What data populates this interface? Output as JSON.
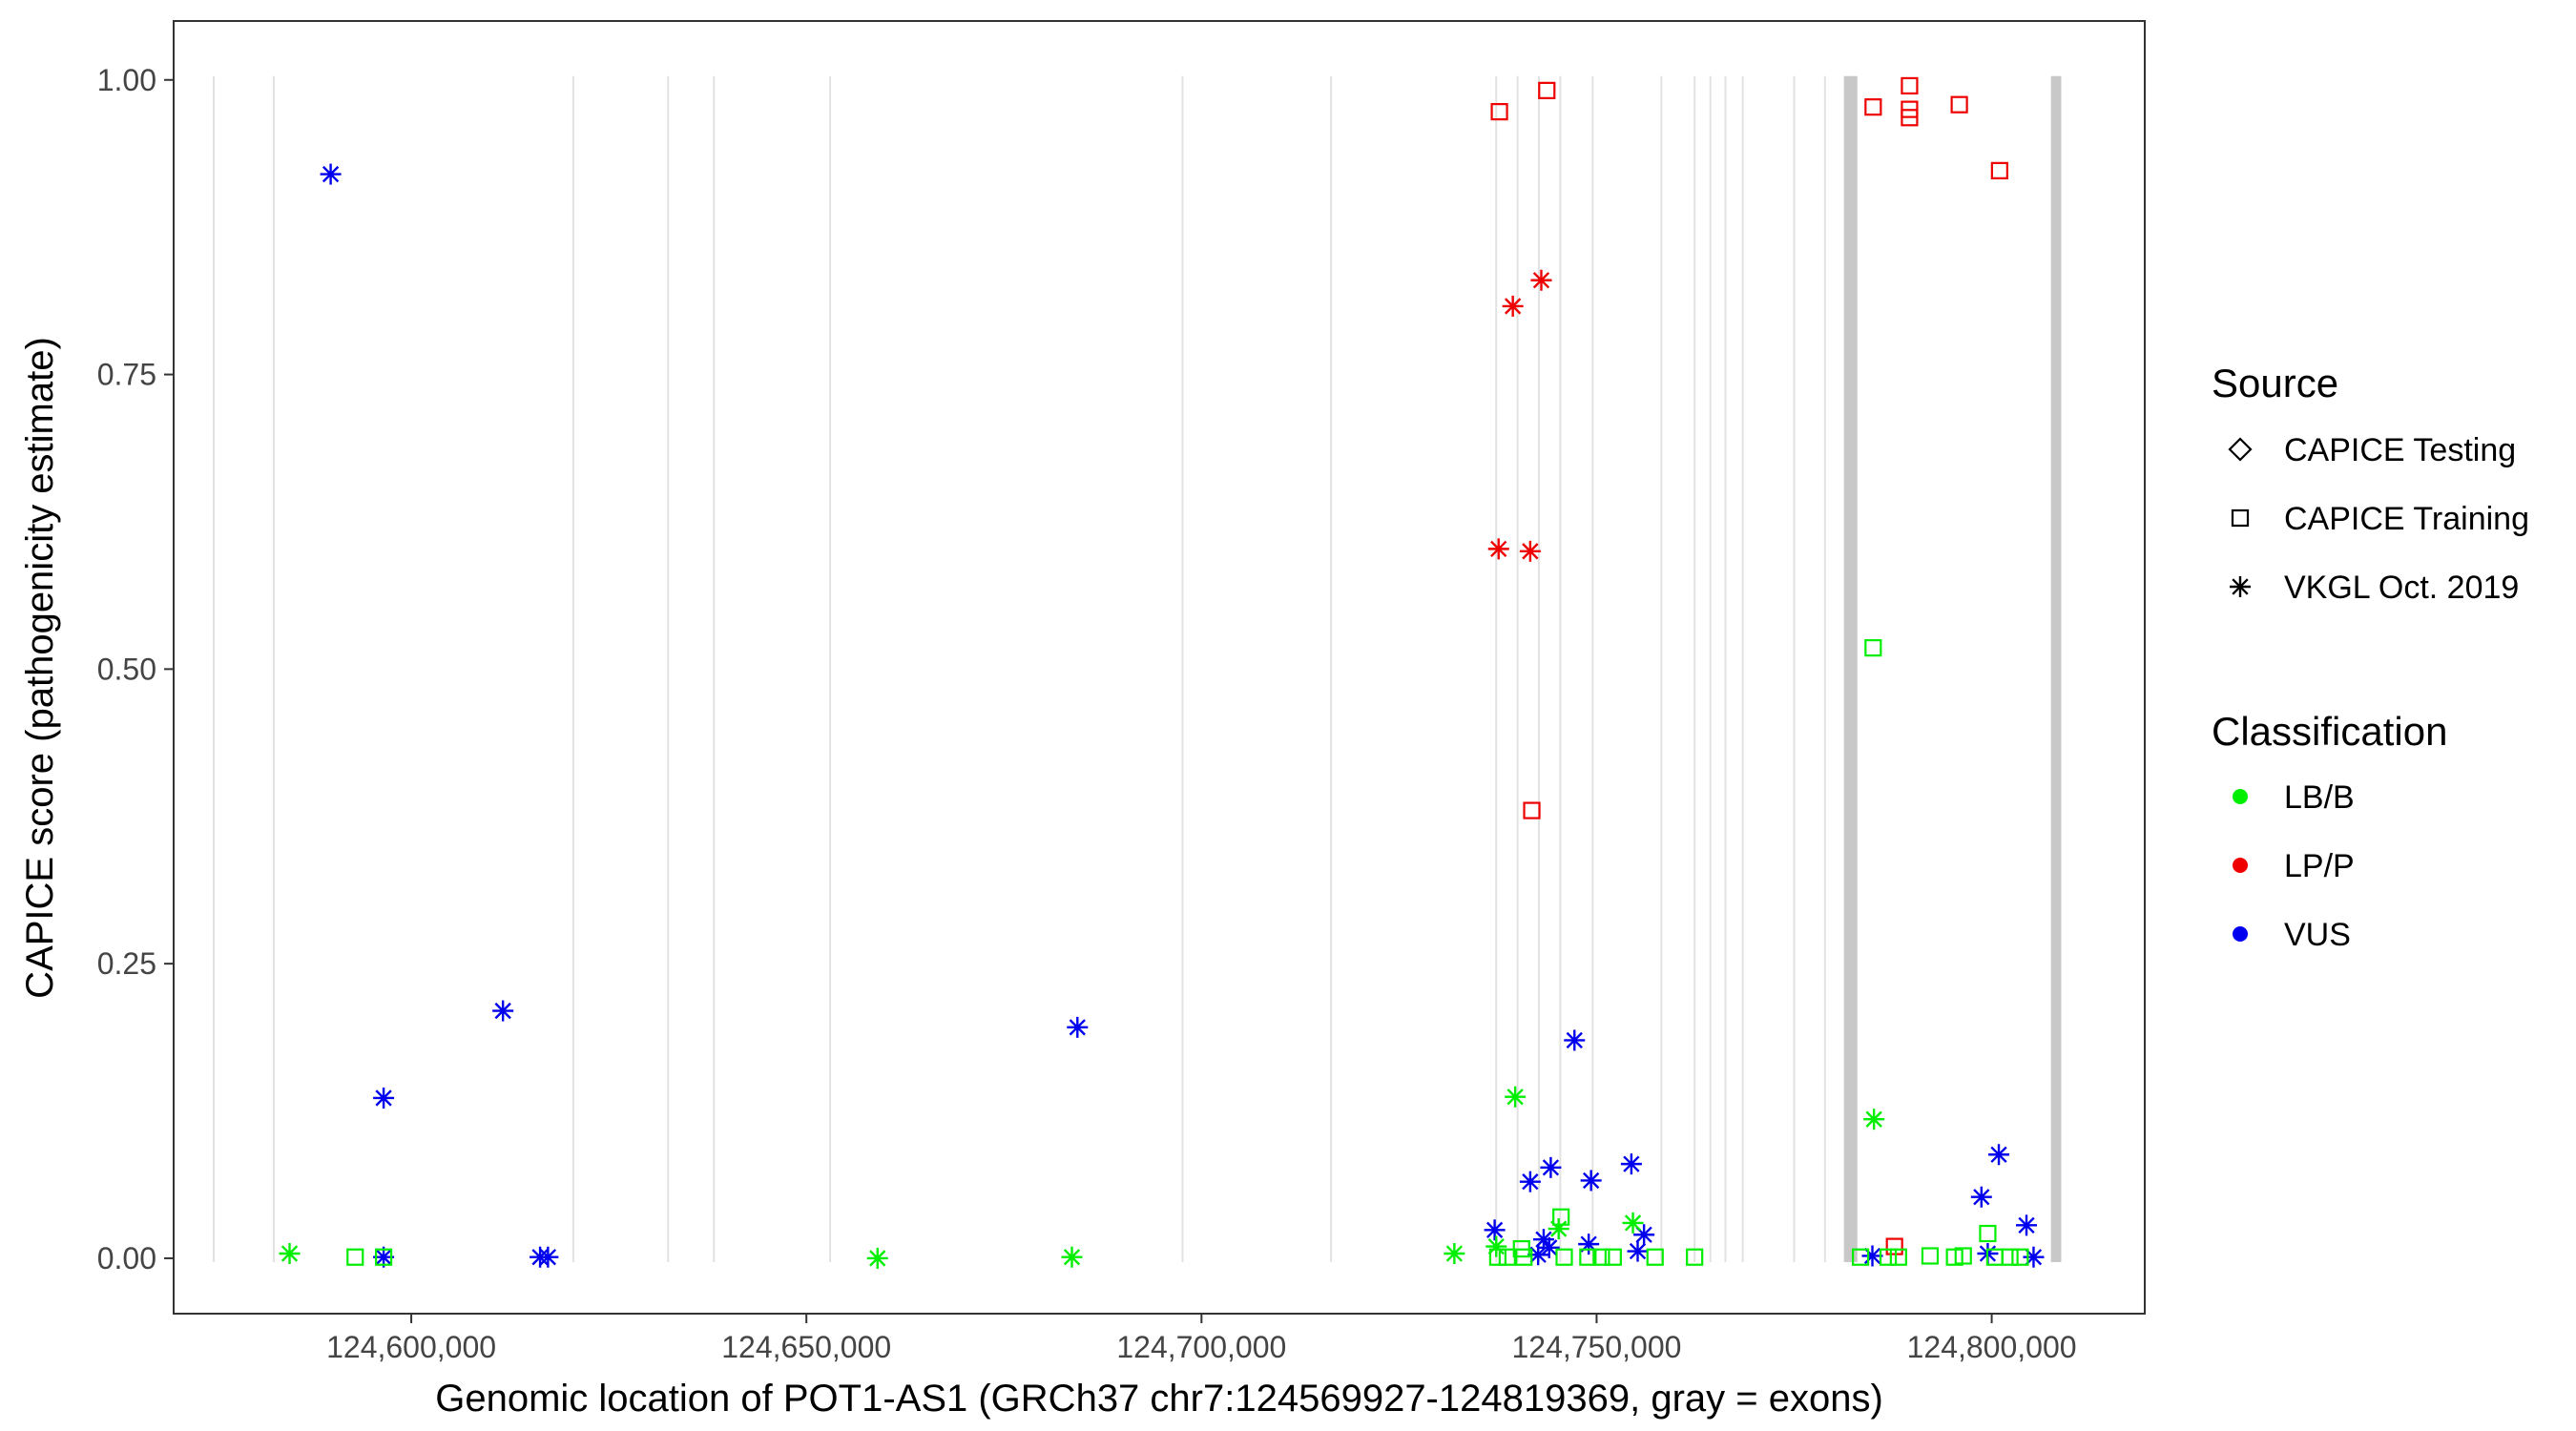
{
  "chart_data": {
    "type": "scatter",
    "title": "",
    "xlabel": "Genomic location of POT1-AS1 (GRCh37 chr7:124569927-124819369, gray = exons)",
    "ylabel": "CAPICE score (pathogenicity estimate)",
    "xlim": [
      124569927,
      124819369
    ],
    "ylim": [
      -0.047,
      1.05
    ],
    "x_ticks": [
      124600000,
      124650000,
      124700000,
      124750000,
      124800000
    ],
    "x_tick_labels": [
      "124,600,000",
      "124,650,000",
      "124,700,000",
      "124,750,000",
      "124,800,000"
    ],
    "y_ticks": [
      0,
      0.25,
      0.5,
      0.75,
      1
    ],
    "y_tick_labels": [
      "0.00",
      "0.25",
      "0.50",
      "0.75",
      "1.00"
    ],
    "grid": "vertical lines at exon boundaries",
    "legend_position": "right",
    "colors": {
      "LB/B": "#00ee00",
      "LP/P": "#ee0000",
      "VUS": "#0000ee",
      "exon": "#c8c8c8",
      "grid": "#e2e2e2"
    },
    "legend": {
      "source_title": "Source",
      "source_items": [
        {
          "label": "CAPICE Testing",
          "shape": "diamond"
        },
        {
          "label": "CAPICE Training",
          "shape": "square"
        },
        {
          "label": "VKGL Oct. 2019",
          "shape": "asterisk"
        }
      ],
      "class_title": "Classification",
      "class_items": [
        {
          "label": "LB/B",
          "color": "#00ee00"
        },
        {
          "label": "LP/P",
          "color": "#ee0000"
        },
        {
          "label": "VUS",
          "color": "#0000ee"
        }
      ]
    },
    "exon_lines": [
      124575000,
      124582600,
      124620500,
      124632500,
      124638300,
      124653000,
      124697600,
      124716400,
      124737300,
      124740000,
      124742700,
      124745400,
      124749500,
      124758200,
      124762400,
      124764400,
      124766300,
      124768500,
      124775000,
      124778900
    ],
    "exon_bars": [
      [
        124781300,
        124783000
      ],
      [
        124807500,
        124808800
      ]
    ],
    "points": [
      {
        "x": 124589800,
        "y": 0.92,
        "source": "VKGL Oct. 2019",
        "class": "VUS"
      },
      {
        "x": 124611600,
        "y": 0.21,
        "source": "VKGL Oct. 2019",
        "class": "VUS"
      },
      {
        "x": 124596500,
        "y": 0.136,
        "source": "VKGL Oct. 2019",
        "class": "VUS"
      },
      {
        "x": 124596500,
        "y": 0.001,
        "source": "VKGL Oct. 2019",
        "class": "VUS"
      },
      {
        "x": 124616300,
        "y": 0.001,
        "source": "VKGL Oct. 2019",
        "class": "VUS"
      },
      {
        "x": 124617300,
        "y": 0.001,
        "source": "VKGL Oct. 2019",
        "class": "VUS"
      },
      {
        "x": 124684300,
        "y": 0.196,
        "source": "VKGL Oct. 2019",
        "class": "VUS"
      },
      {
        "x": 124737100,
        "y": 0.024,
        "source": "VKGL Oct. 2019",
        "class": "VUS"
      },
      {
        "x": 124741600,
        "y": 0.065,
        "source": "VKGL Oct. 2019",
        "class": "VUS"
      },
      {
        "x": 124744200,
        "y": 0.077,
        "source": "VKGL Oct. 2019",
        "class": "VUS"
      },
      {
        "x": 124742600,
        "y": 0.003,
        "source": "VKGL Oct. 2019",
        "class": "VUS"
      },
      {
        "x": 124743300,
        "y": 0.016,
        "source": "VKGL Oct. 2019",
        "class": "VUS"
      },
      {
        "x": 124744000,
        "y": 0.009,
        "source": "VKGL Oct. 2019",
        "class": "VUS"
      },
      {
        "x": 124747200,
        "y": 0.185,
        "source": "VKGL Oct. 2019",
        "class": "VUS"
      },
      {
        "x": 124749000,
        "y": 0.012,
        "source": "VKGL Oct. 2019",
        "class": "VUS"
      },
      {
        "x": 124749300,
        "y": 0.066,
        "source": "VKGL Oct. 2019",
        "class": "VUS"
      },
      {
        "x": 124754400,
        "y": 0.08,
        "source": "VKGL Oct. 2019",
        "class": "VUS"
      },
      {
        "x": 124755200,
        "y": 0.006,
        "source": "VKGL Oct. 2019",
        "class": "VUS"
      },
      {
        "x": 124756000,
        "y": 0.02,
        "source": "VKGL Oct. 2019",
        "class": "VUS"
      },
      {
        "x": 124784900,
        "y": 0.002,
        "source": "VKGL Oct. 2019",
        "class": "VUS"
      },
      {
        "x": 124798700,
        "y": 0.052,
        "source": "VKGL Oct. 2019",
        "class": "VUS"
      },
      {
        "x": 124800900,
        "y": 0.088,
        "source": "VKGL Oct. 2019",
        "class": "VUS"
      },
      {
        "x": 124799500,
        "y": 0.004,
        "source": "VKGL Oct. 2019",
        "class": "VUS"
      },
      {
        "x": 124804400,
        "y": 0.028,
        "source": "VKGL Oct. 2019",
        "class": "VUS"
      },
      {
        "x": 124805300,
        "y": 0.001,
        "source": "VKGL Oct. 2019",
        "class": "VUS"
      },
      {
        "x": 124739400,
        "y": 0.808,
        "source": "VKGL Oct. 2019",
        "class": "LP/P"
      },
      {
        "x": 124743000,
        "y": 0.83,
        "source": "VKGL Oct. 2019",
        "class": "LP/P"
      },
      {
        "x": 124737600,
        "y": 0.602,
        "source": "VKGL Oct. 2019",
        "class": "LP/P"
      },
      {
        "x": 124741600,
        "y": 0.6,
        "source": "VKGL Oct. 2019",
        "class": "LP/P"
      },
      {
        "x": 124737700,
        "y": 0.973,
        "source": "CAPICE Training",
        "class": "LP/P"
      },
      {
        "x": 124743700,
        "y": 0.991,
        "source": "CAPICE Training",
        "class": "LP/P"
      },
      {
        "x": 124741800,
        "y": 0.38,
        "source": "CAPICE Training",
        "class": "LP/P"
      },
      {
        "x": 124785000,
        "y": 0.977,
        "source": "CAPICE Training",
        "class": "LP/P"
      },
      {
        "x": 124789600,
        "y": 0.995,
        "source": "CAPICE Training",
        "class": "LP/P"
      },
      {
        "x": 124789600,
        "y": 0.975,
        "source": "CAPICE Training",
        "class": "LP/P"
      },
      {
        "x": 124789600,
        "y": 0.968,
        "source": "CAPICE Training",
        "class": "LP/P"
      },
      {
        "x": 124795900,
        "y": 0.979,
        "source": "CAPICE Training",
        "class": "LP/P"
      },
      {
        "x": 124801000,
        "y": 0.923,
        "source": "CAPICE Training",
        "class": "LP/P"
      },
      {
        "x": 124787700,
        "y": 0.01,
        "source": "CAPICE Training",
        "class": "LP/P"
      },
      {
        "x": 124584600,
        "y": 0.004,
        "source": "VKGL Oct. 2019",
        "class": "LB/B"
      },
      {
        "x": 124659000,
        "y": 0.0,
        "source": "VKGL Oct. 2019",
        "class": "LB/B"
      },
      {
        "x": 124683600,
        "y": 0.001,
        "source": "VKGL Oct. 2019",
        "class": "LB/B"
      },
      {
        "x": 124732000,
        "y": 0.004,
        "source": "VKGL Oct. 2019",
        "class": "LB/B"
      },
      {
        "x": 124739700,
        "y": 0.137,
        "source": "VKGL Oct. 2019",
        "class": "LB/B"
      },
      {
        "x": 124737300,
        "y": 0.01,
        "source": "VKGL Oct. 2019",
        "class": "LB/B"
      },
      {
        "x": 124745200,
        "y": 0.025,
        "source": "VKGL Oct. 2019",
        "class": "LB/B"
      },
      {
        "x": 124754600,
        "y": 0.03,
        "source": "VKGL Oct. 2019",
        "class": "LB/B"
      },
      {
        "x": 124785100,
        "y": 0.118,
        "source": "VKGL Oct. 2019",
        "class": "LB/B"
      },
      {
        "x": 124592900,
        "y": 0.001,
        "source": "CAPICE Training",
        "class": "LB/B"
      },
      {
        "x": 124596500,
        "y": 0.001,
        "source": "CAPICE Training",
        "class": "LB/B"
      },
      {
        "x": 124785000,
        "y": 0.518,
        "source": "CAPICE Training",
        "class": "LB/B"
      },
      {
        "x": 124745500,
        "y": 0.035,
        "source": "CAPICE Training",
        "class": "LB/B"
      },
      {
        "x": 124740500,
        "y": 0.008,
        "source": "CAPICE Training",
        "class": "LB/B"
      },
      {
        "x": 124737500,
        "y": 0.001,
        "source": "CAPICE Training",
        "class": "LB/B"
      },
      {
        "x": 124738700,
        "y": 0.001,
        "source": "CAPICE Training",
        "class": "LB/B"
      },
      {
        "x": 124740800,
        "y": 0.001,
        "source": "CAPICE Training",
        "class": "LB/B"
      },
      {
        "x": 124745900,
        "y": 0.001,
        "source": "CAPICE Training",
        "class": "LB/B"
      },
      {
        "x": 124748900,
        "y": 0.001,
        "source": "CAPICE Training",
        "class": "LB/B"
      },
      {
        "x": 124750600,
        "y": 0.001,
        "source": "CAPICE Training",
        "class": "LB/B"
      },
      {
        "x": 124752100,
        "y": 0.001,
        "source": "CAPICE Training",
        "class": "LB/B"
      },
      {
        "x": 124757400,
        "y": 0.001,
        "source": "CAPICE Training",
        "class": "LB/B"
      },
      {
        "x": 124762400,
        "y": 0.001,
        "source": "CAPICE Training",
        "class": "LB/B"
      },
      {
        "x": 124783400,
        "y": 0.001,
        "source": "CAPICE Training",
        "class": "LB/B"
      },
      {
        "x": 124786900,
        "y": 0.001,
        "source": "CAPICE Training",
        "class": "LB/B"
      },
      {
        "x": 124788200,
        "y": 0.001,
        "source": "CAPICE Training",
        "class": "LB/B"
      },
      {
        "x": 124792200,
        "y": 0.002,
        "source": "CAPICE Training",
        "class": "LB/B"
      },
      {
        "x": 124795300,
        "y": 0.001,
        "source": "CAPICE Training",
        "class": "LB/B"
      },
      {
        "x": 124796400,
        "y": 0.002,
        "source": "CAPICE Training",
        "class": "LB/B"
      },
      {
        "x": 124799500,
        "y": 0.021,
        "source": "CAPICE Training",
        "class": "LB/B"
      },
      {
        "x": 124800400,
        "y": 0.001,
        "source": "CAPICE Training",
        "class": "LB/B"
      },
      {
        "x": 124802300,
        "y": 0.001,
        "source": "CAPICE Training",
        "class": "LB/B"
      },
      {
        "x": 124803600,
        "y": 0.001,
        "source": "CAPICE Training",
        "class": "LB/B"
      }
    ]
  }
}
